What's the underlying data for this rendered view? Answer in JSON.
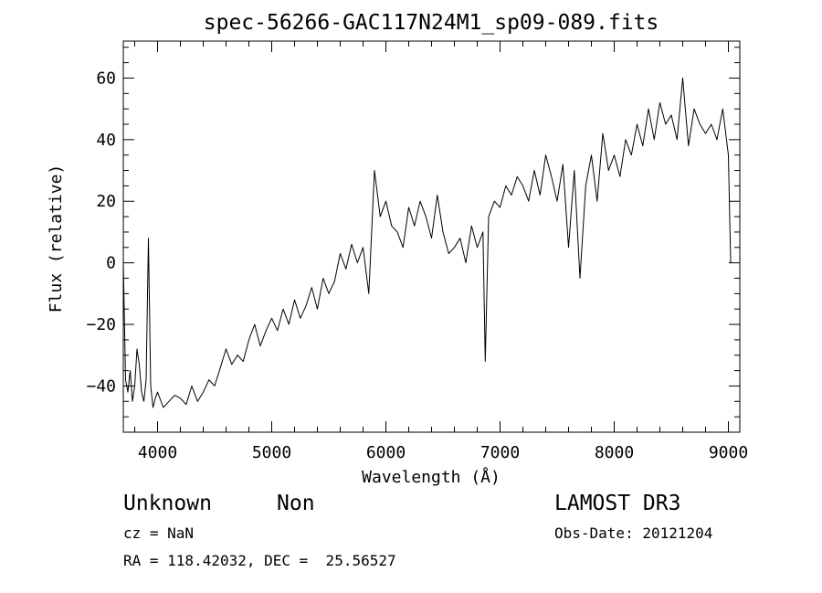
{
  "chart_data": {
    "type": "line",
    "title": "spec-56266-GAC117N24M1_sp09-089.fits",
    "xlabel": "Wavelength (Å)",
    "ylabel": "Flux (relative)",
    "xlim": [
      3700,
      9100
    ],
    "ylim": [
      -55,
      72
    ],
    "xticks": [
      4000,
      5000,
      6000,
      7000,
      8000,
      9000
    ],
    "xtick_labels": [
      "4000",
      "5000",
      "6000",
      "7000",
      "8000",
      "9000"
    ],
    "yticks": [
      -40,
      -20,
      0,
      20,
      40,
      60
    ],
    "ytick_labels": [
      "−40",
      "−20",
      "0",
      "20",
      "40",
      "60"
    ],
    "grid": false,
    "series": [
      {
        "name": "flux",
        "x": [
          3700,
          3720,
          3740,
          3760,
          3780,
          3800,
          3820,
          3840,
          3860,
          3880,
          3900,
          3920,
          3940,
          3960,
          3980,
          4000,
          4050,
          4100,
          4150,
          4200,
          4250,
          4300,
          4350,
          4400,
          4450,
          4500,
          4550,
          4600,
          4650,
          4700,
          4750,
          4800,
          4850,
          4900,
          4950,
          5000,
          5050,
          5100,
          5150,
          5200,
          5250,
          5300,
          5350,
          5400,
          5450,
          5500,
          5550,
          5600,
          5650,
          5700,
          5750,
          5800,
          5850,
          5900,
          5950,
          6000,
          6050,
          6100,
          6150,
          6200,
          6250,
          6300,
          6350,
          6400,
          6450,
          6500,
          6550,
          6600,
          6650,
          6700,
          6750,
          6800,
          6850,
          6870,
          6900,
          6950,
          7000,
          7050,
          7100,
          7150,
          7200,
          7250,
          7300,
          7350,
          7400,
          7450,
          7500,
          7550,
          7600,
          7650,
          7700,
          7750,
          7800,
          7850,
          7900,
          7950,
          8000,
          8050,
          8100,
          8150,
          8200,
          8250,
          8300,
          8350,
          8400,
          8450,
          8500,
          8550,
          8600,
          8650,
          8700,
          8750,
          8800,
          8850,
          8900,
          8950,
          9000,
          9020
        ],
        "y": [
          0,
          -38,
          -42,
          -35,
          -45,
          -40,
          -28,
          -33,
          -42,
          -45,
          -38,
          8,
          -40,
          -47,
          -44,
          -42,
          -47,
          -45,
          -43,
          -44,
          -46,
          -40,
          -45,
          -42,
          -38,
          -40,
          -34,
          -28,
          -33,
          -30,
          -32,
          -25,
          -20,
          -27,
          -22,
          -18,
          -22,
          -15,
          -20,
          -12,
          -18,
          -14,
          -8,
          -15,
          -5,
          -10,
          -6,
          3,
          -2,
          6,
          0,
          5,
          -10,
          30,
          15,
          20,
          12,
          10,
          5,
          18,
          12,
          20,
          15,
          8,
          22,
          10,
          3,
          5,
          8,
          0,
          12,
          5,
          10,
          -32,
          15,
          20,
          18,
          25,
          22,
          28,
          25,
          20,
          30,
          22,
          35,
          28,
          20,
          32,
          5,
          30,
          -5,
          25,
          35,
          20,
          42,
          30,
          35,
          28,
          40,
          35,
          45,
          38,
          50,
          40,
          52,
          45,
          48,
          40,
          60,
          38,
          50,
          45,
          42,
          45,
          40,
          50,
          35,
          0
        ]
      }
    ]
  },
  "info": {
    "class": "Unknown",
    "subclass": "Non",
    "survey": "LAMOST DR3",
    "cz": "cz = NaN",
    "obs_date": "Obs-Date: 20121204",
    "coords": "RA = 118.42032, DEC =  25.56527"
  }
}
